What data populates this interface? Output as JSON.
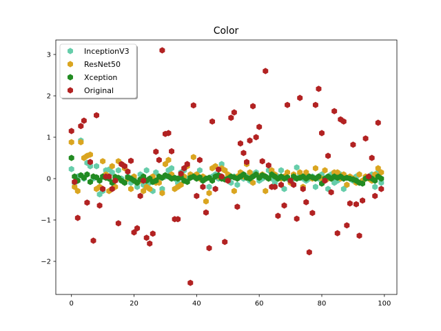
{
  "chart_data": {
    "type": "scatter",
    "title": "Color",
    "xlabel": "",
    "ylabel": "",
    "xlim": [
      -5,
      104
    ],
    "ylim": [
      -2.8,
      3.35
    ],
    "xticks": [
      0,
      20,
      40,
      60,
      80,
      100
    ],
    "yticks": [
      -2,
      -1,
      0,
      1,
      2,
      3
    ],
    "grid": false,
    "legend_placement": "top-left",
    "x": [
      0,
      1,
      2,
      3,
      4,
      5,
      6,
      7,
      8,
      9,
      10,
      11,
      12,
      13,
      14,
      15,
      16,
      17,
      18,
      19,
      20,
      21,
      22,
      23,
      24,
      25,
      26,
      27,
      28,
      29,
      30,
      31,
      32,
      33,
      34,
      35,
      36,
      37,
      38,
      39,
      40,
      41,
      42,
      43,
      44,
      45,
      46,
      47,
      48,
      49,
      50,
      51,
      52,
      53,
      54,
      55,
      56,
      57,
      58,
      59,
      60,
      61,
      62,
      63,
      64,
      65,
      66,
      67,
      68,
      69,
      70,
      71,
      72,
      73,
      74,
      75,
      76,
      77,
      78,
      79,
      80,
      81,
      82,
      83,
      84,
      85,
      86,
      87,
      88,
      89,
      90,
      91,
      92,
      93,
      94,
      95,
      96,
      97,
      98,
      99
    ],
    "series": [
      {
        "name": "InceptionV3",
        "color": "#66cdaa",
        "values": [
          0.23,
          -0.1,
          0.05,
          0.92,
          0.0,
          0.38,
          0.3,
          0.0,
          0.3,
          -0.38,
          -0.3,
          0.2,
          0.22,
          0.15,
          -0.05,
          0.2,
          0.0,
          0.3,
          0.05,
          -0.1,
          0.0,
          -0.2,
          0.1,
          -0.15,
          0.2,
          -0.1,
          -0.3,
          0.15,
          0.0,
          -0.25,
          0.05,
          0.2,
          0.25,
          0.0,
          -0.1,
          0.15,
          0.2,
          0.0,
          0.1,
          0.05,
          0.1,
          0.2,
          -0.05,
          0.0,
          -0.2,
          0.05,
          0.1,
          0.0,
          0.35,
          0.2,
          0.0,
          -0.1,
          0.05,
          -0.15,
          0.1,
          0.0,
          0.05,
          -0.05,
          0.1,
          0.15,
          -0.05,
          0.0,
          0.05,
          0.2,
          0.0,
          -0.1,
          0.05,
          0.2,
          -0.25,
          0.0,
          -0.05,
          0.0,
          0.27,
          0.1,
          0.0,
          -0.05,
          0.0,
          0.05,
          -0.2,
          0.0,
          0.1,
          0.0,
          -0.25,
          0.1,
          -0.1,
          -0.05,
          0.1,
          -0.25,
          -0.15,
          0.0,
          -0.05,
          0.05,
          0.1,
          -0.05,
          0.0,
          0.05,
          0.1,
          -0.2,
          0.15,
          -0.1
        ]
      },
      {
        "name": "ResNet50",
        "color": "#daa520",
        "values": [
          0.88,
          -0.2,
          -0.3,
          0.88,
          0.5,
          0.55,
          0.58,
          0.05,
          -0.25,
          -0.2,
          0.42,
          0.1,
          -0.3,
          0.3,
          -0.2,
          0.42,
          0.35,
          0.25,
          0.0,
          -0.25,
          0.05,
          -0.1,
          -0.05,
          -0.3,
          -0.2,
          -0.25,
          0.05,
          -0.1,
          -0.1,
          -0.35,
          0.35,
          0.45,
          0.1,
          -0.25,
          -0.2,
          -0.15,
          0.05,
          0.3,
          0.1,
          0.52,
          0.1,
          0.0,
          0.05,
          -0.55,
          -0.35,
          0.25,
          0.3,
          0.05,
          0.25,
          0.2,
          0.1,
          0.05,
          -0.3,
          0.05,
          0.15,
          0.05,
          0.35,
          0.15,
          -0.1,
          0.1,
          0.05,
          0.1,
          -0.3,
          0.0,
          0.2,
          0.1,
          0.0,
          0.0,
          0.05,
          0.15,
          -0.1,
          0.1,
          0.0,
          0.15,
          -0.2,
          0.15,
          0.05,
          0.0,
          0.25,
          0.05,
          0.0,
          0.2,
          0.0,
          0.0,
          0.15,
          0.15,
          0.0,
          0.1,
          -0.15,
          0.05,
          0.0,
          -0.1,
          0.1,
          -0.05,
          0.05,
          0.0,
          -0.05,
          0.1,
          0.25,
          0.15
        ]
      },
      {
        "name": "Xception",
        "color": "#228b22",
        "values": [
          0.5,
          0.05,
          -0.05,
          0.08,
          0.02,
          0.1,
          -0.08,
          0.05,
          0.03,
          -0.05,
          0.05,
          0.02,
          0.0,
          -0.1,
          0.04,
          0.02,
          -0.05,
          -0.1,
          0.03,
          0.0,
          -0.05,
          -0.1,
          -0.02,
          0.05,
          -0.05,
          0.0,
          -0.08,
          -0.05,
          0.05,
          0.02,
          0.08,
          0.05,
          0.0,
          0.02,
          0.0,
          0.03,
          -0.05,
          -0.08,
          0.02,
          0.05,
          0.0,
          0.03,
          -0.05,
          0.0,
          0.02,
          -0.05,
          0.05,
          0.08,
          0.0,
          -0.02,
          0.0,
          0.05,
          0.03,
          0.0,
          0.05,
          0.1,
          0.02,
          0.0,
          0.05,
          0.1,
          0.02,
          0.08,
          0.05,
          0.0,
          0.1,
          0.05,
          0.0,
          0.05,
          0.0,
          0.03,
          -0.05,
          0.05,
          0.0,
          0.02,
          0.05,
          0.0,
          0.05,
          0.03,
          0.0,
          0.05,
          -0.12,
          0.0,
          0.05,
          0.0,
          0.05,
          0.02,
          0.05,
          0.0,
          0.02,
          0.0,
          -0.02,
          -0.05,
          -0.1,
          -0.12,
          0.0,
          0.02,
          0.0,
          -0.05,
          0.05,
          0.0
        ]
      },
      {
        "name": "Original",
        "color": "#b22222",
        "values": [
          1.15,
          -0.08,
          -0.95,
          1.27,
          1.4,
          -0.58,
          0.4,
          -1.5,
          1.53,
          -0.65,
          -0.25,
          0.05,
          0.05,
          -0.25,
          -0.05,
          -1.08,
          0.35,
          0.3,
          0.17,
          0.43,
          -1.3,
          -1.2,
          -0.42,
          -0.05,
          -1.43,
          -1.57,
          -1.33,
          0.65,
          0.45,
          3.1,
          1.08,
          1.1,
          0.66,
          -0.98,
          -0.98,
          0.12,
          0.25,
          0.35,
          -2.52,
          1.77,
          -0.42,
          0.45,
          -0.2,
          -0.82,
          -1.68,
          1.38,
          -0.25,
          0.22,
          0.05,
          -1.53,
          -0.05,
          1.47,
          1.6,
          -0.68,
          0.85,
          0.62,
          0.4,
          0.92,
          1.75,
          1.0,
          1.25,
          0.42,
          2.6,
          0.32,
          -0.2,
          -0.2,
          -0.9,
          -0.15,
          -0.65,
          1.78,
          -0.05,
          -0.15,
          -0.97,
          1.95,
          -0.25,
          -0.57,
          -1.78,
          -0.83,
          1.78,
          2.17,
          1.1,
          -0.05,
          0.55,
          -0.33,
          1.63,
          -1.32,
          1.43,
          1.38,
          -1.13,
          -0.6,
          0.82,
          -0.62,
          -1.38,
          -0.53,
          0.97,
          0.05,
          0.5,
          -0.42,
          1.35,
          -0.25
        ]
      }
    ]
  }
}
